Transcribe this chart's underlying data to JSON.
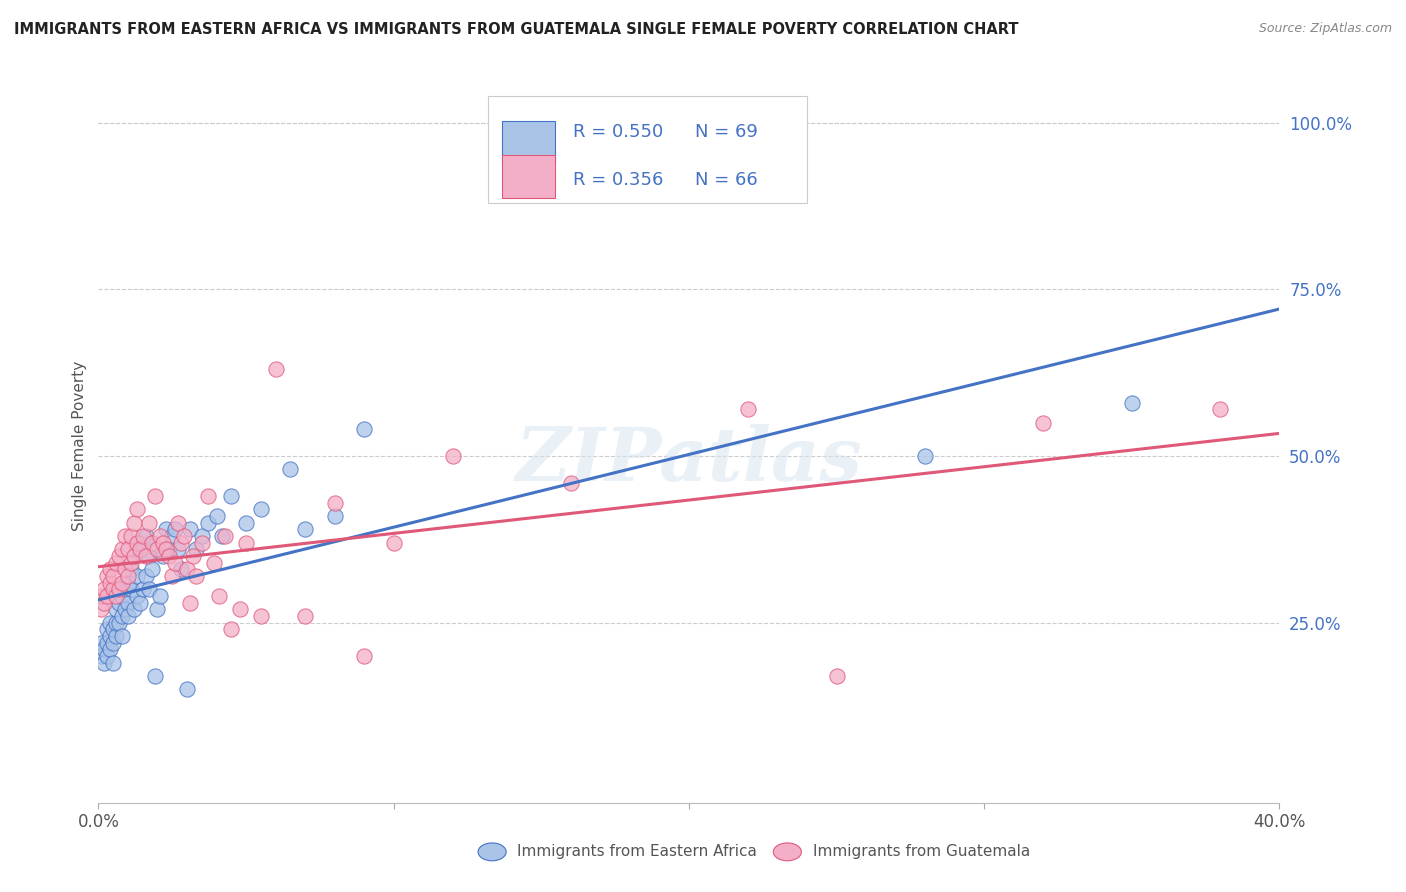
{
  "title": "IMMIGRANTS FROM EASTERN AFRICA VS IMMIGRANTS FROM GUATEMALA SINGLE FEMALE POVERTY CORRELATION CHART",
  "source": "Source: ZipAtlas.com",
  "ylabel": "Single Female Poverty",
  "right_yticks": [
    "100.0%",
    "75.0%",
    "50.0%",
    "25.0%"
  ],
  "right_ytick_vals": [
    1.0,
    0.75,
    0.5,
    0.25
  ],
  "R_blue": 0.55,
  "N_blue": 69,
  "R_pink": 0.356,
  "N_pink": 66,
  "color_blue": "#aac4e8",
  "color_pink": "#f4afc8",
  "line_blue": "#4472c4",
  "line_pink": "#e05878",
  "watermark": "ZIPatlas",
  "blue_x": [
    0.001,
    0.001,
    0.002,
    0.002,
    0.003,
    0.003,
    0.003,
    0.004,
    0.004,
    0.004,
    0.005,
    0.005,
    0.005,
    0.006,
    0.006,
    0.006,
    0.007,
    0.007,
    0.007,
    0.008,
    0.008,
    0.008,
    0.009,
    0.009,
    0.01,
    0.01,
    0.01,
    0.011,
    0.011,
    0.012,
    0.012,
    0.013,
    0.013,
    0.014,
    0.014,
    0.015,
    0.015,
    0.016,
    0.016,
    0.017,
    0.017,
    0.018,
    0.018,
    0.019,
    0.02,
    0.021,
    0.022,
    0.023,
    0.024,
    0.025,
    0.026,
    0.027,
    0.028,
    0.03,
    0.031,
    0.033,
    0.035,
    0.037,
    0.04,
    0.042,
    0.045,
    0.05,
    0.055,
    0.065,
    0.07,
    0.08,
    0.09,
    0.28,
    0.35
  ],
  "blue_y": [
    0.22,
    0.2,
    0.21,
    0.19,
    0.24,
    0.22,
    0.2,
    0.23,
    0.25,
    0.21,
    0.22,
    0.24,
    0.19,
    0.23,
    0.25,
    0.27,
    0.25,
    0.28,
    0.3,
    0.23,
    0.26,
    0.29,
    0.27,
    0.3,
    0.28,
    0.26,
    0.31,
    0.3,
    0.33,
    0.27,
    0.35,
    0.29,
    0.32,
    0.37,
    0.28,
    0.3,
    0.36,
    0.32,
    0.38,
    0.3,
    0.35,
    0.33,
    0.37,
    0.17,
    0.27,
    0.29,
    0.35,
    0.39,
    0.36,
    0.38,
    0.39,
    0.36,
    0.33,
    0.15,
    0.39,
    0.36,
    0.38,
    0.4,
    0.41,
    0.38,
    0.44,
    0.4,
    0.42,
    0.48,
    0.39,
    0.41,
    0.54,
    0.5,
    0.58
  ],
  "pink_x": [
    0.001,
    0.001,
    0.002,
    0.002,
    0.003,
    0.003,
    0.004,
    0.004,
    0.005,
    0.005,
    0.006,
    0.006,
    0.007,
    0.007,
    0.008,
    0.008,
    0.009,
    0.009,
    0.01,
    0.01,
    0.011,
    0.011,
    0.012,
    0.012,
    0.013,
    0.013,
    0.014,
    0.015,
    0.016,
    0.017,
    0.018,
    0.019,
    0.02,
    0.021,
    0.022,
    0.023,
    0.024,
    0.025,
    0.026,
    0.027,
    0.028,
    0.029,
    0.03,
    0.031,
    0.032,
    0.033,
    0.035,
    0.037,
    0.039,
    0.041,
    0.043,
    0.045,
    0.048,
    0.05,
    0.055,
    0.06,
    0.07,
    0.08,
    0.09,
    0.1,
    0.12,
    0.16,
    0.22,
    0.25,
    0.32,
    0.38
  ],
  "pink_y": [
    0.27,
    0.29,
    0.28,
    0.3,
    0.29,
    0.32,
    0.31,
    0.33,
    0.3,
    0.32,
    0.29,
    0.34,
    0.3,
    0.35,
    0.31,
    0.36,
    0.33,
    0.38,
    0.32,
    0.36,
    0.34,
    0.38,
    0.35,
    0.4,
    0.37,
    0.42,
    0.36,
    0.38,
    0.35,
    0.4,
    0.37,
    0.44,
    0.36,
    0.38,
    0.37,
    0.36,
    0.35,
    0.32,
    0.34,
    0.4,
    0.37,
    0.38,
    0.33,
    0.28,
    0.35,
    0.32,
    0.37,
    0.44,
    0.34,
    0.29,
    0.38,
    0.24,
    0.27,
    0.37,
    0.26,
    0.63,
    0.26,
    0.43,
    0.2,
    0.37,
    0.5,
    0.46,
    0.57,
    0.17,
    0.55,
    0.57
  ],
  "xlim": [
    0.0,
    0.4
  ],
  "ylim": [
    -0.02,
    1.05
  ],
  "background_color": "#ffffff",
  "grid_color": "#cccccc",
  "title_color": "#222222",
  "right_axis_color": "#4472c4",
  "bottom_legend_blue": "Immigrants from Eastern Africa",
  "bottom_legend_pink": "Immigrants from Guatemala"
}
